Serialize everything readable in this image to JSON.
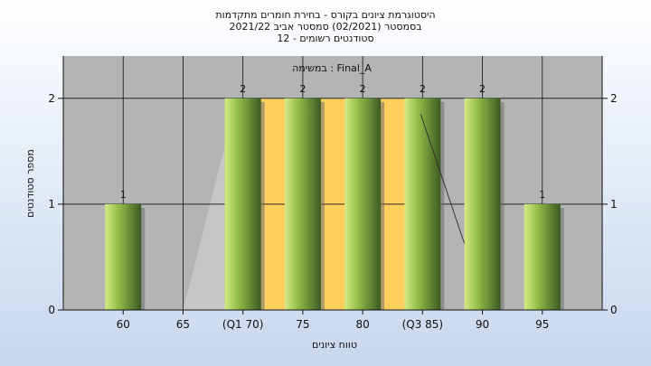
{
  "colors": {
    "plot_bg": "#b4b4b4",
    "quartile_band": "#fdd05e",
    "bar_light": "#d5ea86",
    "bar_mid": "#96c04a",
    "bar_dark": "#3c5a22",
    "median_line": "#2b2b2b",
    "spread_area": "#c6c6c6"
  },
  "chart_data": {
    "type": "bar",
    "title_lines": [
      "היסטוגרמת ציונים בקורס - בחירת חומרים מתקדמות",
      "בסמסטר  (02/2021)  סמסטר אביב 2021/22",
      "סטודנטים רשומים - 12"
    ],
    "annotation": "במשימה : Final_A",
    "xlabel": "טווח ציונים",
    "ylabel": "מספר סטודנטים",
    "categories": [
      "60",
      "65",
      "(Q1 70)",
      "75",
      "80",
      "(Q3 85)",
      "90",
      "95"
    ],
    "values": [
      1,
      0,
      2,
      2,
      2,
      2,
      2,
      1
    ],
    "data_labels": [
      "1",
      "",
      "2",
      "2",
      "2",
      "2",
      "2",
      "1"
    ],
    "quartile_band": [
      "(Q1 70)",
      "(Q3 85)"
    ],
    "ylim": [
      0,
      2.4
    ],
    "yticks": [
      0,
      1,
      2
    ],
    "grid": true,
    "y_axis_both_sides": true
  }
}
